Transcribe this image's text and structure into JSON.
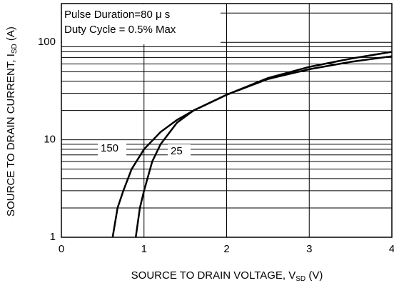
{
  "chart_data": {
    "type": "line",
    "x_label": {
      "text": "SOURCE TO DRAIN VOLTAGE, V",
      "sub": "SD",
      "unit": " (V)"
    },
    "y_label": {
      "text": "SOURCE TO DRAIN CURRENT, I",
      "sub": "SD",
      "unit": " (A)"
    },
    "annotations": [
      "Pulse Duration=80 μ s",
      "Duty Cycle = 0.5% Max"
    ],
    "xlim": [
      0,
      4
    ],
    "xticks": [
      0,
      1,
      2,
      3,
      4
    ],
    "ylim": [
      1,
      250
    ],
    "yticks": [
      1,
      10,
      100
    ],
    "y_minor_grid": [
      2,
      3,
      4,
      5,
      6,
      7,
      8,
      9,
      20,
      30,
      40,
      50,
      60,
      70,
      80,
      90,
      200
    ],
    "log_y": true,
    "grid": true,
    "series": [
      {
        "name": "150",
        "color": "#000000",
        "x": [
          0.62,
          0.68,
          0.75,
          0.85,
          1.0,
          1.2,
          1.4,
          1.6,
          2.0,
          2.5,
          3.0,
          3.5,
          4.0
        ],
        "values": [
          1,
          2,
          3,
          5,
          8,
          12,
          16,
          20,
          29,
          42,
          53,
          63,
          72
        ]
      },
      {
        "name": "25",
        "color": "#000000",
        "x": [
          0.9,
          0.95,
          1.0,
          1.1,
          1.2,
          1.4,
          1.6,
          2.0,
          2.5,
          3.0,
          3.5,
          4.0
        ],
        "values": [
          1,
          2,
          3,
          6,
          9,
          15,
          20,
          29,
          43,
          56,
          68,
          80
        ]
      }
    ]
  }
}
